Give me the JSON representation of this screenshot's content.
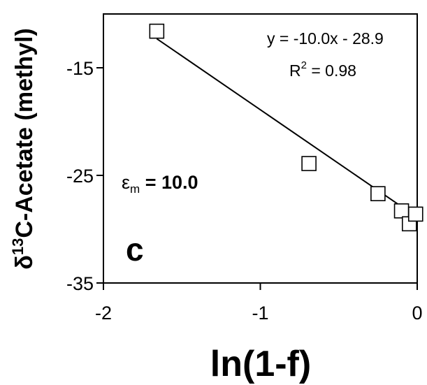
{
  "chart_data": {
    "type": "scatter",
    "xlabel": "ln(1-f)",
    "ylabel_prefix": "δ",
    "ylabel_sup": "13",
    "ylabel_rest": "C-Acetate (methyl)",
    "xlim": [
      -2,
      0
    ],
    "ylim": [
      -35,
      -10
    ],
    "xticks": [
      -2,
      -1,
      0
    ],
    "xtick_labels": [
      "-2",
      "-1",
      "0"
    ],
    "yticks": [
      -35,
      -25,
      -15
    ],
    "ytick_labels": [
      "-35",
      "-25",
      "-15"
    ],
    "grid": false,
    "points": [
      {
        "x": -1.66,
        "y": -11.6
      },
      {
        "x": -0.69,
        "y": -23.9
      },
      {
        "x": -0.25,
        "y": -26.7
      },
      {
        "x": -0.1,
        "y": -28.3
      },
      {
        "x": -0.05,
        "y": -29.5
      },
      {
        "x": -0.01,
        "y": -28.6
      }
    ],
    "fit": {
      "slope": -10.0,
      "intercept": -28.9,
      "x_range": [
        -1.66,
        0
      ]
    },
    "annotations": {
      "equation": "y = -10.0x - 28.9",
      "r2_prefix": "R",
      "r2_sup": "2",
      "r2_rest": " = 0.98",
      "epsilon_symbol": "ε",
      "epsilon_sub": "m",
      "epsilon_rest": " = 10.0",
      "panel_label": "c"
    }
  }
}
